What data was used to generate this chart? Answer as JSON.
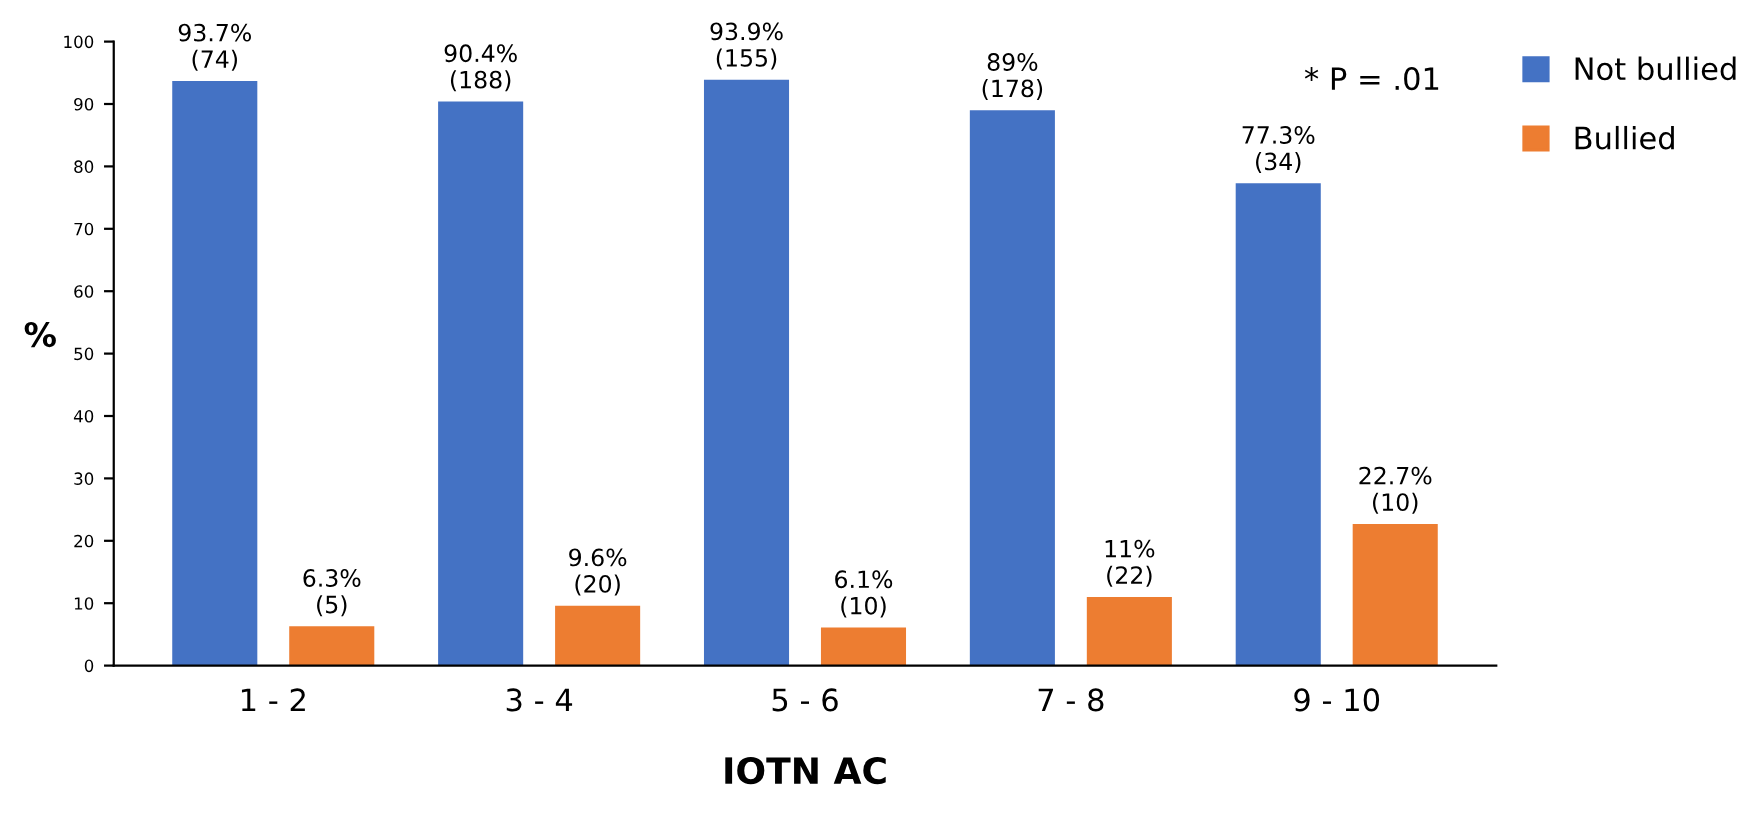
{
  "chart_data": {
    "type": "bar",
    "xlabel": "IOTN AC",
    "ylabel": "%",
    "categories": [
      "1 - 2",
      "3 - 4",
      "5 - 6",
      "7 - 8",
      "9 - 10"
    ],
    "series": [
      {
        "name": "Not bullied",
        "color": "#4472c4",
        "values": [
          93.7,
          90.4,
          93.9,
          89,
          77.3
        ],
        "value_labels": [
          "93.7%\n(74)",
          "90.4%\n(188)",
          "93.9%\n(155)",
          "89%\n(178)",
          "77.3%\n(34)"
        ]
      },
      {
        "name": "Bullied",
        "color": "#ed7d31",
        "values": [
          6.3,
          9.6,
          6.1,
          11,
          22.7
        ],
        "value_labels": [
          "6.3%\n(5)",
          "9.6%\n(20)",
          "6.1%\n(10)",
          "11%\n(22)",
          "22.7%\n(10)"
        ]
      }
    ],
    "ylim": [
      0,
      100
    ],
    "yticks": [
      0,
      10,
      20,
      30,
      40,
      50,
      60,
      70,
      80,
      90,
      100
    ],
    "annotations": [
      "* P = .01"
    ],
    "legend": "top right",
    "grid": false
  }
}
